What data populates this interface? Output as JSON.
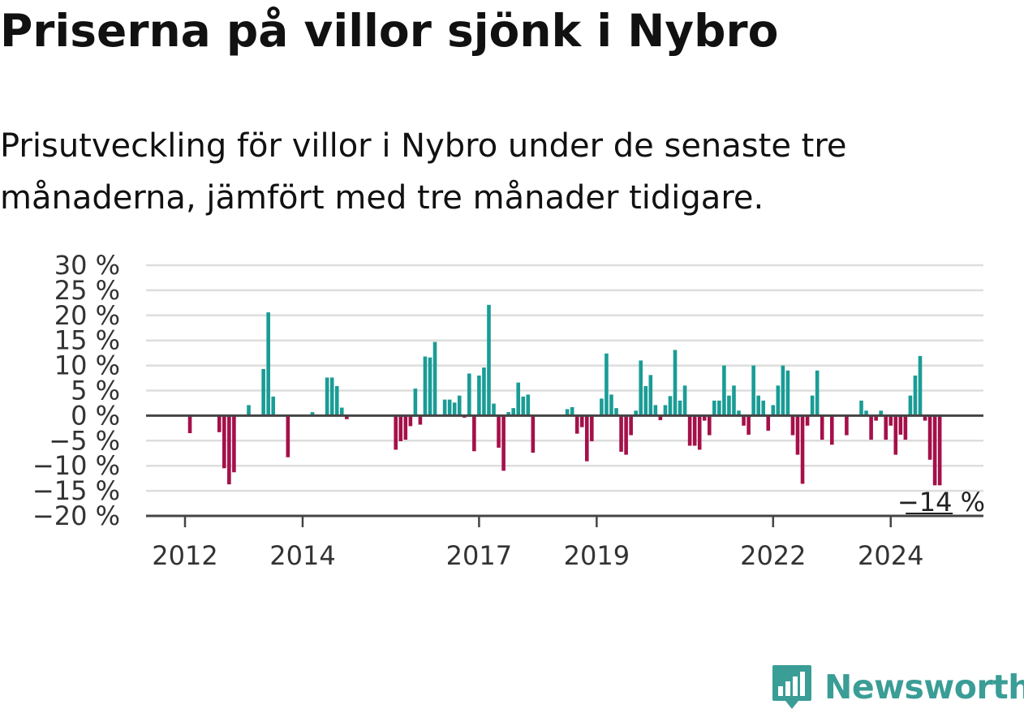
{
  "title": "Priserna på villor sjönk i Nybro",
  "subtitle": "Prisutveckling för villor i Nybro under de senaste tre månaderna, jämfört med tre månader tidigare.",
  "brand": {
    "name": "Newsworthy",
    "icon": "newsworthy-chart-icon",
    "color": "#3a9d96"
  },
  "colors": {
    "positive": "#1a9c96",
    "negative": "#a5104a",
    "grid": "#dddddd",
    "axis": "#444444"
  },
  "chart_data": {
    "type": "bar",
    "title": "Priserna på villor sjönk i Nybro",
    "xlabel": "",
    "ylabel": "",
    "ylim": [
      -20,
      30
    ],
    "yticks": [
      30,
      25,
      20,
      15,
      10,
      5,
      0,
      -5,
      -10,
      -15,
      -20
    ],
    "ytick_labels": [
      "30 %",
      "25 %",
      "20 %",
      "15 %",
      "10 %",
      "5 %",
      "0 %",
      "−5 %",
      "−10 %",
      "−15 %",
      "−20 %"
    ],
    "xticks": [
      {
        "label": "2012",
        "month_index": 0
      },
      {
        "label": "2014",
        "month_index": 24
      },
      {
        "label": "2017",
        "month_index": 60
      },
      {
        "label": "2019",
        "month_index": 84
      },
      {
        "label": "2022",
        "month_index": 120
      },
      {
        "label": "2024",
        "month_index": 144
      }
    ],
    "x_start": "2012-01",
    "x_end": "2024-12",
    "grid": true,
    "annotation": {
      "text": "−14 %",
      "month_index": 155
    },
    "values": [
      null,
      -3.5,
      null,
      null,
      null,
      null,
      null,
      -3.3,
      -10.5,
      -13.7,
      -11.3,
      null,
      null,
      2.1,
      null,
      null,
      9.3,
      20.6,
      3.8,
      null,
      null,
      -8.3,
      null,
      null,
      null,
      null,
      0.7,
      null,
      null,
      7.6,
      7.6,
      5.9,
      1.6,
      -0.7,
      null,
      null,
      null,
      null,
      null,
      null,
      null,
      null,
      null,
      -6.8,
      -5.1,
      -4.8,
      -2.1,
      5.4,
      -1.8,
      11.8,
      11.6,
      14.7,
      null,
      3.2,
      3.2,
      2.6,
      4.0,
      -0.4,
      8.4,
      -7.1,
      8.0,
      9.6,
      22.1,
      2.4,
      -6.4,
      -11.0,
      0.7,
      1.5,
      6.6,
      3.8,
      4.2,
      -7.4,
      null,
      null,
      null,
      null,
      null,
      null,
      1.3,
      1.7,
      -3.6,
      -2.3,
      -9.1,
      -5.1,
      null,
      3.4,
      12.4,
      4.2,
      1.5,
      -7.2,
      -7.8,
      -3.9,
      1.0,
      11.0,
      5.9,
      8.1,
      2.1,
      -0.9,
      2.1,
      3.9,
      13.1,
      3.0,
      6.0,
      -6.0,
      -6.0,
      -6.8,
      -1.0,
      -3.9,
      3.0,
      3.0,
      10.0,
      4.0,
      6.0,
      1.0,
      -2.0,
      -3.8,
      10.0,
      4.0,
      3.0,
      -3.0,
      2.1,
      6.0,
      10.0,
      9.0,
      -3.9,
      -7.8,
      -13.6,
      -2.0,
      4.0,
      9.0,
      -4.8,
      null,
      -5.8,
      null,
      null,
      -3.9,
      null,
      null,
      3.0,
      1.0,
      -4.8,
      -1.0,
      1.0,
      -4.8,
      -2.0,
      -7.8,
      -3.8,
      -4.8,
      4.0,
      8.0,
      11.9,
      -1.0,
      -8.8,
      -13.9,
      -13.9,
      null
    ]
  }
}
